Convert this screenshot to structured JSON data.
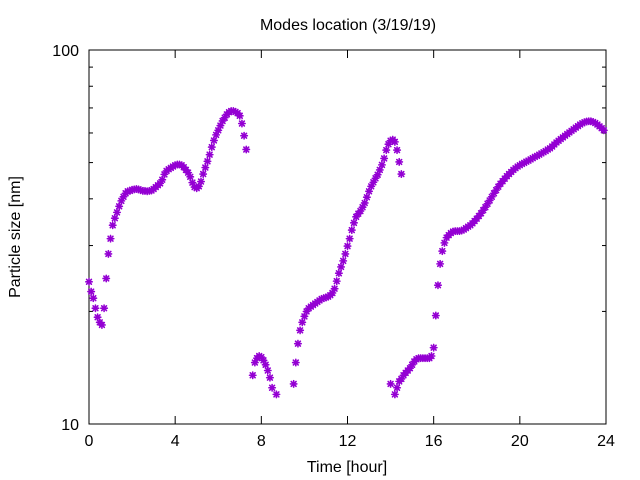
{
  "chart_data": {
    "type": "scatter",
    "title": "Modes location (3/19/19)",
    "xlabel": "Time [hour]",
    "ylabel": "Particle size [nm]",
    "xlim": [
      0,
      24
    ],
    "ylim": [
      10,
      100
    ],
    "yscale": "log",
    "grid": false,
    "legend": "none",
    "marker": "asterisk",
    "color": "#9400d3",
    "x_ticks": [
      "0",
      "4",
      "8",
      "12",
      "16",
      "20",
      "24"
    ],
    "y_ticks": [
      "10",
      "100"
    ],
    "series": [
      {
        "points": [
          [
            0.0,
            24.0
          ],
          [
            0.1,
            22.6
          ],
          [
            0.2,
            21.7
          ],
          [
            0.3,
            20.4
          ],
          [
            0.4,
            19.3
          ],
          [
            0.5,
            18.7
          ],
          [
            0.6,
            18.4
          ],
          [
            0.7,
            20.4
          ],
          [
            0.8,
            24.5
          ],
          [
            0.9,
            28.5
          ],
          [
            1.0,
            31.3
          ],
          [
            1.1,
            34.0
          ],
          [
            1.2,
            35.5
          ],
          [
            1.3,
            36.8
          ],
          [
            1.4,
            38.2
          ],
          [
            1.5,
            39.5
          ],
          [
            1.6,
            40.5
          ],
          [
            1.7,
            41.4
          ],
          [
            1.8,
            41.9
          ],
          [
            1.9,
            42.0
          ],
          [
            2.0,
            42.3
          ],
          [
            2.1,
            42.4
          ],
          [
            2.2,
            42.5
          ],
          [
            2.3,
            42.4
          ],
          [
            2.4,
            42.2
          ],
          [
            2.5,
            42.0
          ],
          [
            2.6,
            42.0
          ],
          [
            2.7,
            41.9
          ],
          [
            2.8,
            42.0
          ],
          [
            2.9,
            42.1
          ],
          [
            3.0,
            42.5
          ],
          [
            3.1,
            43.0
          ],
          [
            3.2,
            43.5
          ],
          [
            3.3,
            44.0
          ],
          [
            3.4,
            45.0
          ],
          [
            3.5,
            46.5
          ],
          [
            3.6,
            47.5
          ],
          [
            3.7,
            48.0
          ],
          [
            3.8,
            48.4
          ],
          [
            3.9,
            48.8
          ],
          [
            4.0,
            49.2
          ],
          [
            4.1,
            49.4
          ],
          [
            4.2,
            49.4
          ],
          [
            4.3,
            49.2
          ],
          [
            4.4,
            48.6
          ],
          [
            4.5,
            47.8
          ],
          [
            4.6,
            47.0
          ],
          [
            4.7,
            45.8
          ],
          [
            4.8,
            44.2
          ],
          [
            4.9,
            43.0
          ],
          [
            5.0,
            42.7
          ],
          [
            5.1,
            43.2
          ],
          [
            5.2,
            44.5
          ],
          [
            5.3,
            46.6
          ],
          [
            5.4,
            48.5
          ],
          [
            5.5,
            50.4
          ],
          [
            5.6,
            52.5
          ],
          [
            5.7,
            55.0
          ],
          [
            5.8,
            57.3
          ],
          [
            5.9,
            59.3
          ],
          [
            6.0,
            61.0
          ],
          [
            6.1,
            62.8
          ],
          [
            6.2,
            64.6
          ],
          [
            6.3,
            65.9
          ],
          [
            6.4,
            67.3
          ],
          [
            6.5,
            68.2
          ],
          [
            6.6,
            68.7
          ],
          [
            6.7,
            68.7
          ],
          [
            6.8,
            68.3
          ],
          [
            6.9,
            67.8
          ],
          [
            7.0,
            66.7
          ],
          [
            7.1,
            63.6
          ],
          [
            7.2,
            59.0
          ],
          [
            7.3,
            54.2
          ],
          [
            7.6,
            13.5
          ],
          [
            7.7,
            14.6
          ],
          [
            7.8,
            15.0
          ],
          [
            7.9,
            15.2
          ],
          [
            8.0,
            15.1
          ],
          [
            8.1,
            14.8
          ],
          [
            8.2,
            14.4
          ],
          [
            8.3,
            13.9
          ],
          [
            8.4,
            13.3
          ],
          [
            8.5,
            12.5
          ],
          [
            8.7,
            12.0
          ],
          [
            9.5,
            12.8
          ],
          [
            9.6,
            14.6
          ],
          [
            9.7,
            16.4
          ],
          [
            9.8,
            17.8
          ],
          [
            9.9,
            18.7
          ],
          [
            10.0,
            19.4
          ],
          [
            10.1,
            20.0
          ],
          [
            10.2,
            20.4
          ],
          [
            10.3,
            20.6
          ],
          [
            10.4,
            20.8
          ],
          [
            10.5,
            21.0
          ],
          [
            10.6,
            21.2
          ],
          [
            10.7,
            21.4
          ],
          [
            10.8,
            21.6
          ],
          [
            10.9,
            21.7
          ],
          [
            11.0,
            21.8
          ],
          [
            11.1,
            21.9
          ],
          [
            11.2,
            22.1
          ],
          [
            11.3,
            22.4
          ],
          [
            11.4,
            23.0
          ],
          [
            11.5,
            24.1
          ],
          [
            11.6,
            25.3
          ],
          [
            11.7,
            26.3
          ],
          [
            11.8,
            27.3
          ],
          [
            11.9,
            28.5
          ],
          [
            12.0,
            29.9
          ],
          [
            12.1,
            31.3
          ],
          [
            12.2,
            33.0
          ],
          [
            12.3,
            34.5
          ],
          [
            12.4,
            35.8
          ],
          [
            12.5,
            36.5
          ],
          [
            12.6,
            37.1
          ],
          [
            12.7,
            38.0
          ],
          [
            12.8,
            39.0
          ],
          [
            12.9,
            40.4
          ],
          [
            13.0,
            41.9
          ],
          [
            13.1,
            43.2
          ],
          [
            13.2,
            44.3
          ],
          [
            13.3,
            45.4
          ],
          [
            13.4,
            46.4
          ],
          [
            13.5,
            47.8
          ],
          [
            13.6,
            49.3
          ],
          [
            13.7,
            51.3
          ],
          [
            13.8,
            54.0
          ],
          [
            13.9,
            56.0
          ],
          [
            14.0,
            57.2
          ],
          [
            14.1,
            57.6
          ],
          [
            14.2,
            56.8
          ],
          [
            14.3,
            54.0
          ],
          [
            14.4,
            50.2
          ],
          [
            14.5,
            46.6
          ],
          [
            14.0,
            12.8
          ],
          [
            14.2,
            12.0
          ],
          [
            14.3,
            12.5
          ],
          [
            14.4,
            13.0
          ],
          [
            14.5,
            13.2
          ],
          [
            14.6,
            13.5
          ],
          [
            14.7,
            13.7
          ],
          [
            14.8,
            13.9
          ],
          [
            14.9,
            14.1
          ],
          [
            15.0,
            14.4
          ],
          [
            15.1,
            14.7
          ],
          [
            15.2,
            14.9
          ],
          [
            15.3,
            15.0
          ],
          [
            15.4,
            15.0
          ],
          [
            15.5,
            15.0
          ],
          [
            15.6,
            15.0
          ],
          [
            15.7,
            15.0
          ],
          [
            15.8,
            15.0
          ],
          [
            15.9,
            15.2
          ],
          [
            16.0,
            16.0
          ],
          [
            16.1,
            19.5
          ],
          [
            16.2,
            23.5
          ],
          [
            16.3,
            26.8
          ],
          [
            16.4,
            29.0
          ],
          [
            16.5,
            30.5
          ],
          [
            16.6,
            31.5
          ],
          [
            16.7,
            32.0
          ],
          [
            16.8,
            32.4
          ],
          [
            16.9,
            32.7
          ],
          [
            17.0,
            32.8
          ],
          [
            17.1,
            32.8
          ],
          [
            17.2,
            32.8
          ],
          [
            17.3,
            32.9
          ],
          [
            17.4,
            33.1
          ],
          [
            17.5,
            33.4
          ],
          [
            17.6,
            33.7
          ],
          [
            17.7,
            34.0
          ],
          [
            17.8,
            34.4
          ],
          [
            17.9,
            34.9
          ],
          [
            18.0,
            35.4
          ],
          [
            18.1,
            36.0
          ],
          [
            18.2,
            36.6
          ],
          [
            18.3,
            37.3
          ],
          [
            18.4,
            38.0
          ],
          [
            18.5,
            38.8
          ],
          [
            18.6,
            39.6
          ],
          [
            18.7,
            40.5
          ],
          [
            18.8,
            41.4
          ],
          [
            18.9,
            42.2
          ],
          [
            19.0,
            43.1
          ],
          [
            19.1,
            43.9
          ],
          [
            19.2,
            44.6
          ],
          [
            19.3,
            45.3
          ],
          [
            19.4,
            46.0
          ],
          [
            19.5,
            46.6
          ],
          [
            19.6,
            47.2
          ],
          [
            19.7,
            47.8
          ],
          [
            19.8,
            48.3
          ],
          [
            19.9,
            48.8
          ],
          [
            20.0,
            49.2
          ],
          [
            20.1,
            49.6
          ],
          [
            20.2,
            49.9
          ],
          [
            20.3,
            50.3
          ],
          [
            20.4,
            50.6
          ],
          [
            20.5,
            51.0
          ],
          [
            20.6,
            51.4
          ],
          [
            20.7,
            51.8
          ],
          [
            20.8,
            52.1
          ],
          [
            20.9,
            52.5
          ],
          [
            21.0,
            52.9
          ],
          [
            21.1,
            53.3
          ],
          [
            21.2,
            53.7
          ],
          [
            21.3,
            54.2
          ],
          [
            21.4,
            54.6
          ],
          [
            21.5,
            55.2
          ],
          [
            21.6,
            55.9
          ],
          [
            21.7,
            56.6
          ],
          [
            21.8,
            57.2
          ],
          [
            21.9,
            57.8
          ],
          [
            22.0,
            58.4
          ],
          [
            22.1,
            59.0
          ],
          [
            22.2,
            59.6
          ],
          [
            22.3,
            60.2
          ],
          [
            22.4,
            60.8
          ],
          [
            22.5,
            61.4
          ],
          [
            22.6,
            62.0
          ],
          [
            22.7,
            62.6
          ],
          [
            22.8,
            63.2
          ],
          [
            22.9,
            63.7
          ],
          [
            23.0,
            64.1
          ],
          [
            23.1,
            64.4
          ],
          [
            23.2,
            64.5
          ],
          [
            23.3,
            64.5
          ],
          [
            23.4,
            64.2
          ],
          [
            23.5,
            63.8
          ],
          [
            23.6,
            63.2
          ],
          [
            23.7,
            62.5
          ],
          [
            23.8,
            61.8
          ],
          [
            23.9,
            61.0
          ]
        ]
      }
    ]
  }
}
